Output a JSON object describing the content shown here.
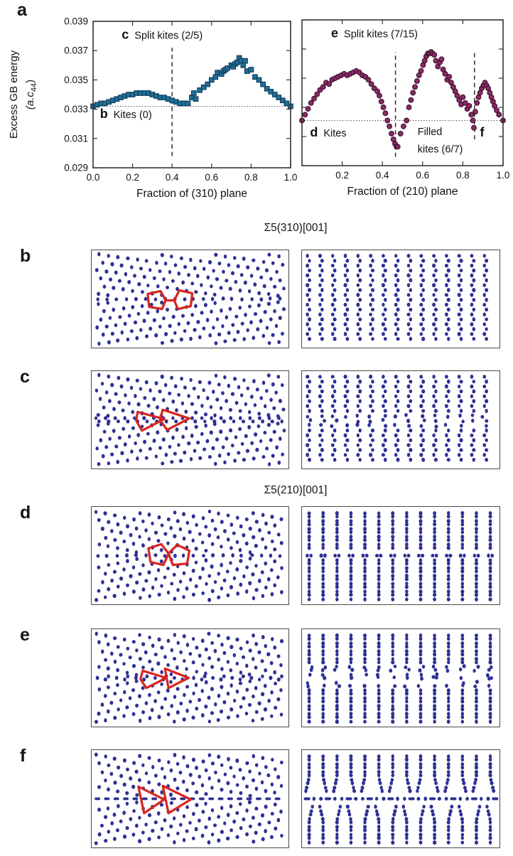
{
  "figure": {
    "panels": {
      "a": "a",
      "b": "b",
      "c": "c",
      "d": "d",
      "e": "e",
      "f": "f"
    },
    "section_titles": [
      {
        "id": "sigma310",
        "text": "Σ5(310)[001]"
      },
      {
        "id": "sigma210",
        "text": "Σ5(210)[001]"
      }
    ],
    "colors": {
      "square_marker": "#1E6F99",
      "square_edge": "#0F3A57",
      "circle_marker": "#8B2A68",
      "circle_edge": "#381027",
      "atom_dot": "#2E3193",
      "kite_outline": "#D9251F"
    }
  },
  "chart_data": [
    {
      "id": "gb-energy-310",
      "type": "scatter",
      "xlabel": "Fraction of (310) plane",
      "ylabel": "Excess GB energy (a.c44)",
      "ylabel_rich": {
        "line1": "Excess GB energy",
        "line2_pre": "(a.c",
        "line2_sub": "44",
        "line2_post": ")"
      },
      "xlim": [
        0,
        1
      ],
      "ylim": [
        0.029,
        0.039
      ],
      "xticks": [
        0,
        0.2,
        0.4,
        0.6,
        0.8,
        1
      ],
      "xtick_labels": [
        "0.0",
        "0.2",
        "0.4",
        "0.6",
        "0.8",
        "1.0"
      ],
      "yticks": [
        0.029,
        0.031,
        0.033,
        0.035,
        0.037,
        0.039
      ],
      "ytick_labels": [
        "0.029",
        "0.031",
        "0.033",
        "0.035",
        "0.037",
        "0.039"
      ],
      "marker": "square",
      "marker_color": "#1E6F99",
      "marker_edge": "#0F3A57",
      "baseline_y": 0.0332,
      "vlines": [
        {
          "x": 0.4,
          "y1": 0.0298,
          "y2": 0.0372
        }
      ],
      "annotations": [
        {
          "letter": "c",
          "text": "Split kites (2/5)",
          "x": 0.145,
          "y": 0.0378
        },
        {
          "letter": "b",
          "text": "Kites (0)",
          "x": 0.035,
          "y": 0.0324
        }
      ],
      "points": [
        [
          0.0,
          0.0332
        ],
        [
          0.02,
          0.0333
        ],
        [
          0.04,
          0.0334
        ],
        [
          0.06,
          0.0334
        ],
        [
          0.08,
          0.0335
        ],
        [
          0.1,
          0.0336
        ],
        [
          0.12,
          0.0337
        ],
        [
          0.14,
          0.0338
        ],
        [
          0.16,
          0.0339
        ],
        [
          0.18,
          0.034
        ],
        [
          0.2,
          0.034
        ],
        [
          0.22,
          0.0341
        ],
        [
          0.24,
          0.0341
        ],
        [
          0.26,
          0.0341
        ],
        [
          0.28,
          0.0341
        ],
        [
          0.3,
          0.034
        ],
        [
          0.32,
          0.0339
        ],
        [
          0.34,
          0.0338
        ],
        [
          0.36,
          0.0338
        ],
        [
          0.38,
          0.0337
        ],
        [
          0.4,
          0.0336
        ],
        [
          0.42,
          0.0335
        ],
        [
          0.44,
          0.0334
        ],
        [
          0.46,
          0.0334
        ],
        [
          0.48,
          0.0334
        ],
        [
          0.5,
          0.0338
        ],
        [
          0.51,
          0.0341
        ],
        [
          0.52,
          0.0337
        ],
        [
          0.54,
          0.0343
        ],
        [
          0.56,
          0.0345
        ],
        [
          0.58,
          0.0347
        ],
        [
          0.6,
          0.035
        ],
        [
          0.62,
          0.0352
        ],
        [
          0.63,
          0.0355
        ],
        [
          0.65,
          0.0354
        ],
        [
          0.66,
          0.0356
        ],
        [
          0.67,
          0.0357
        ],
        [
          0.68,
          0.0358
        ],
        [
          0.7,
          0.036
        ],
        [
          0.71,
          0.0359
        ],
        [
          0.72,
          0.0361
        ],
        [
          0.73,
          0.0362
        ],
        [
          0.74,
          0.0365
        ],
        [
          0.75,
          0.0363
        ],
        [
          0.76,
          0.036
        ],
        [
          0.77,
          0.0363
        ],
        [
          0.78,
          0.0356
        ],
        [
          0.8,
          0.0357
        ],
        [
          0.82,
          0.0352
        ],
        [
          0.84,
          0.035
        ],
        [
          0.86,
          0.0347
        ],
        [
          0.88,
          0.0344
        ],
        [
          0.9,
          0.0342
        ],
        [
          0.92,
          0.034
        ],
        [
          0.94,
          0.0338
        ],
        [
          0.96,
          0.0336
        ],
        [
          0.98,
          0.0334
        ],
        [
          1.0,
          0.0332
        ]
      ]
    },
    {
      "id": "gb-energy-210",
      "type": "scatter",
      "xlabel": "Fraction of (210) plane",
      "ylabel": "",
      "xlim": [
        0,
        1
      ],
      "ylim": [
        0.029,
        0.039
      ],
      "xticks": [
        0.2,
        0.4,
        0.6,
        0.8,
        1
      ],
      "xtick_labels": [
        "0.2",
        "0.4",
        "0.6",
        "0.8",
        "1.0"
      ],
      "yticks": [
        0.029,
        0.031,
        0.033,
        0.035,
        0.037,
        0.039
      ],
      "ytick_labels": [],
      "marker": "circle",
      "marker_color": "#8B2A68",
      "marker_edge": "#381027",
      "baseline_y": 0.0321,
      "vlines": [
        {
          "x": 0.465,
          "y1": 0.0296,
          "y2": 0.0368
        },
        {
          "x": 0.858,
          "y1": 0.0308,
          "y2": 0.0368
        }
      ],
      "annotations": [
        {
          "letter": "e",
          "text": "Split kites (7/15)",
          "x": 0.145,
          "y": 0.0378
        },
        {
          "letter": "d",
          "text": "Kites",
          "x": 0.04,
          "y": 0.031
        },
        {
          "letter": "",
          "text": "Filled",
          "x": 0.575,
          "y": 0.0311
        },
        {
          "letter": "",
          "text": "kites (6/7)",
          "x": 0.575,
          "y": 0.0299
        },
        {
          "letter": "f",
          "text": "",
          "x": 0.885,
          "y": 0.031
        }
      ],
      "points": [
        [
          0.0,
          0.0321
        ],
        [
          0.015,
          0.0325
        ],
        [
          0.03,
          0.0329
        ],
        [
          0.045,
          0.0333
        ],
        [
          0.06,
          0.0336
        ],
        [
          0.075,
          0.0339
        ],
        [
          0.09,
          0.0342
        ],
        [
          0.105,
          0.0344
        ],
        [
          0.12,
          0.0347
        ],
        [
          0.135,
          0.0346
        ],
        [
          0.15,
          0.0349
        ],
        [
          0.165,
          0.035
        ],
        [
          0.18,
          0.0351
        ],
        [
          0.195,
          0.0352
        ],
        [
          0.21,
          0.0353
        ],
        [
          0.225,
          0.0352
        ],
        [
          0.24,
          0.0353
        ],
        [
          0.255,
          0.0354
        ],
        [
          0.27,
          0.0355
        ],
        [
          0.285,
          0.0354
        ],
        [
          0.3,
          0.0352
        ],
        [
          0.315,
          0.0351
        ],
        [
          0.33,
          0.0349
        ],
        [
          0.345,
          0.0346
        ],
        [
          0.36,
          0.0343
        ],
        [
          0.375,
          0.0341
        ],
        [
          0.385,
          0.0338
        ],
        [
          0.395,
          0.0334
        ],
        [
          0.405,
          0.033
        ],
        [
          0.415,
          0.0326
        ],
        [
          0.425,
          0.0321
        ],
        [
          0.435,
          0.0317
        ],
        [
          0.445,
          0.0312
        ],
        [
          0.455,
          0.0308
        ],
        [
          0.463,
          0.0305
        ],
        [
          0.47,
          0.0303
        ],
        [
          0.476,
          0.0303
        ],
        [
          0.49,
          0.0312
        ],
        [
          0.505,
          0.0317
        ],
        [
          0.52,
          0.0321
        ],
        [
          0.532,
          0.033
        ],
        [
          0.542,
          0.0335
        ],
        [
          0.552,
          0.034
        ],
        [
          0.562,
          0.0344
        ],
        [
          0.572,
          0.0348
        ],
        [
          0.582,
          0.0352
        ],
        [
          0.592,
          0.0355
        ],
        [
          0.602,
          0.0359
        ],
        [
          0.61,
          0.0362
        ],
        [
          0.618,
          0.0365
        ],
        [
          0.626,
          0.0367
        ],
        [
          0.634,
          0.0367
        ],
        [
          0.642,
          0.0368
        ],
        [
          0.65,
          0.0367
        ],
        [
          0.658,
          0.0366
        ],
        [
          0.666,
          0.0362
        ],
        [
          0.676,
          0.0358
        ],
        [
          0.686,
          0.0361
        ],
        [
          0.694,
          0.0363
        ],
        [
          0.702,
          0.0356
        ],
        [
          0.712,
          0.0353
        ],
        [
          0.722,
          0.0349
        ],
        [
          0.732,
          0.0351
        ],
        [
          0.742,
          0.0347
        ],
        [
          0.752,
          0.0344
        ],
        [
          0.762,
          0.0341
        ],
        [
          0.772,
          0.0338
        ],
        [
          0.782,
          0.0335
        ],
        [
          0.792,
          0.0332
        ],
        [
          0.8,
          0.0337
        ],
        [
          0.812,
          0.0333
        ],
        [
          0.822,
          0.0329
        ],
        [
          0.832,
          0.0331
        ],
        [
          0.842,
          0.0325
        ],
        [
          0.85,
          0.0321
        ],
        [
          0.855,
          0.0316
        ],
        [
          0.862,
          0.0327
        ],
        [
          0.87,
          0.0333
        ],
        [
          0.878,
          0.0337
        ],
        [
          0.886,
          0.034
        ],
        [
          0.894,
          0.0343
        ],
        [
          0.902,
          0.0345
        ],
        [
          0.91,
          0.0347
        ],
        [
          0.918,
          0.0345
        ],
        [
          0.926,
          0.0343
        ],
        [
          0.934,
          0.034
        ],
        [
          0.942,
          0.0337
        ],
        [
          0.95,
          0.0334
        ],
        [
          0.958,
          0.0331
        ],
        [
          0.968,
          0.0328
        ],
        [
          0.98,
          0.0325
        ],
        [
          1.0,
          0.0321
        ]
      ]
    }
  ],
  "lattice_panels": [
    {
      "id": "b",
      "letter": "b",
      "group": "Σ5(310)[001]"
    },
    {
      "id": "c",
      "letter": "c",
      "group": "Σ5(310)[001]"
    },
    {
      "id": "d",
      "letter": "d",
      "group": "Σ5(210)[001]"
    },
    {
      "id": "e",
      "letter": "e",
      "group": "Σ5(210)[001]"
    },
    {
      "id": "f",
      "letter": "f",
      "group": "Σ5(210)[001]"
    }
  ]
}
